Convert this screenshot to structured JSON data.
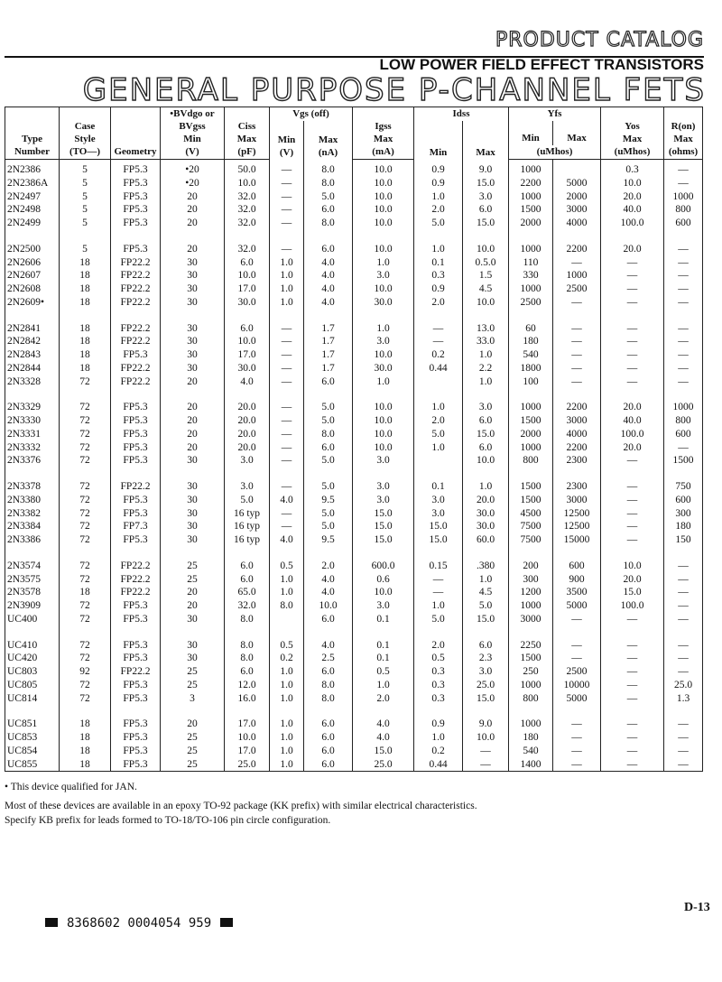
{
  "header": {
    "catalog": "PRODUCT CATALOG",
    "section": "LOW POWER FIELD EFFECT TRANSISTORS",
    "title": "GENERAL PURPOSE P-CHANNEL FETS"
  },
  "table": {
    "header": [
      [
        "Type",
        "Number"
      ],
      [
        "Case",
        "Style",
        "(TO—)"
      ],
      [
        "Geometry"
      ],
      [
        "•BVdgo or",
        "BVgss",
        "Min",
        "(V)"
      ],
      [
        "Ciss",
        "Max",
        "(pF)"
      ],
      [
        "Vgs (off)"
      ],
      [
        "Min",
        "(V)"
      ],
      [
        "Max",
        "(nA)"
      ],
      [
        "Igss",
        "Max",
        "(mA)"
      ],
      [
        "Idss"
      ],
      [
        "Min"
      ],
      [
        "Max"
      ],
      [
        "Yfs"
      ],
      [
        "Min"
      ],
      [
        "Max"
      ],
      [
        "(uMhos)"
      ],
      [
        "Yos",
        "Max",
        "(uMhos)"
      ],
      [
        "R(on)",
        "Max",
        "(ohms)"
      ]
    ],
    "groups": [
      [
        [
          "2N2386",
          "5",
          "FP5.3",
          "•20",
          "50.0",
          "—",
          "8.0",
          "10.0",
          "0.9",
          "9.0",
          "1000",
          null,
          "0.3",
          "—"
        ],
        [
          "2N2386A",
          "5",
          "FP5.3",
          "•20",
          "10.0",
          "—",
          "8.0",
          "10.0",
          "0.9",
          "15.0",
          "2200",
          "5000",
          "10.0",
          "—"
        ],
        [
          "2N2497",
          "5",
          "FP5.3",
          "20",
          "32.0",
          "—",
          "5.0",
          "10.0",
          "1.0",
          "3.0",
          "1000",
          "2000",
          "20.0",
          "1000"
        ],
        [
          "2N2498",
          "5",
          "FP5.3",
          "20",
          "32.0",
          "—",
          "6.0",
          "10.0",
          "2.0",
          "6.0",
          "1500",
          "3000",
          "40.0",
          "800"
        ],
        [
          "2N2499",
          "5",
          "FP5.3",
          "20",
          "32.0",
          "—",
          "8.0",
          "10.0",
          "5.0",
          "15.0",
          "2000",
          "4000",
          "100.0",
          "600"
        ]
      ],
      [
        [
          "2N2500",
          "5",
          "FP5.3",
          "20",
          "32.0",
          "—",
          "6.0",
          "10.0",
          "1.0",
          "10.0",
          "1000",
          "2200",
          "20.0",
          "—"
        ],
        [
          "2N2606",
          "18",
          "FP22.2",
          "30",
          "6.0",
          "1.0",
          "4.0",
          "1.0",
          "0.1",
          "0.5.0",
          "110",
          "—",
          "—",
          "—"
        ],
        [
          "2N2607",
          "18",
          "FP22.2",
          "30",
          "10.0",
          "1.0",
          "4.0",
          "3.0",
          "0.3",
          "1.5",
          "330",
          "1000",
          "—",
          "—"
        ],
        [
          "2N2608",
          "18",
          "FP22.2",
          "30",
          "17.0",
          "1.0",
          "4.0",
          "10.0",
          "0.9",
          "4.5",
          "1000",
          "2500",
          "—",
          "—"
        ],
        [
          "2N2609•",
          "18",
          "FP22.2",
          "30",
          "30.0",
          "1.0",
          "4.0",
          "30.0",
          "2.0",
          "10.0",
          "2500",
          "—",
          "—",
          "—"
        ]
      ],
      [
        [
          "2N2841",
          "18",
          "FP22.2",
          "30",
          "6.0",
          "—",
          "1.7",
          "1.0",
          "—",
          "13.0",
          "60",
          "—",
          "—",
          "—"
        ],
        [
          "2N2842",
          "18",
          "FP22.2",
          "30",
          "10.0",
          "—",
          "1.7",
          "3.0",
          "—",
          "33.0",
          "180",
          "—",
          "—",
          "—"
        ],
        [
          "2N2843",
          "18",
          "FP5.3",
          "30",
          "17.0",
          "—",
          "1.7",
          "10.0",
          "0.2",
          "1.0",
          "540",
          "—",
          "—",
          "—"
        ],
        [
          "2N2844",
          "18",
          "FP22.2",
          "30",
          "30.0",
          "—",
          "1.7",
          "30.0",
          "0.44",
          "2.2",
          "1800",
          "—",
          "—",
          "—"
        ],
        [
          "2N3328",
          "72",
          "FP22.2",
          "20",
          "4.0",
          "—",
          "6.0",
          "1.0",
          null,
          "1.0",
          "100",
          "—",
          "—",
          "—"
        ]
      ],
      [
        [
          "2N3329",
          "72",
          "FP5.3",
          "20",
          "20.0",
          "—",
          "5.0",
          "10.0",
          "1.0",
          "3.0",
          "1000",
          "2200",
          "20.0",
          "1000"
        ],
        [
          "2N3330",
          "72",
          "FP5.3",
          "20",
          "20.0",
          "—",
          "5.0",
          "10.0",
          "2.0",
          "6.0",
          "1500",
          "3000",
          "40.0",
          "800"
        ],
        [
          "2N3331",
          "72",
          "FP5.3",
          "20",
          "20.0",
          "—",
          "8.0",
          "10.0",
          "5.0",
          "15.0",
          "2000",
          "4000",
          "100.0",
          "600"
        ],
        [
          "2N3332",
          "72",
          "FP5.3",
          "20",
          "20.0",
          "—",
          "6.0",
          "10.0",
          "1.0",
          "6.0",
          "1000",
          "2200",
          "20.0",
          "—"
        ],
        [
          "2N3376",
          "72",
          "FP5.3",
          "30",
          "3.0",
          "—",
          "5.0",
          "3.0",
          null,
          "10.0",
          "800",
          "2300",
          "—",
          "1500"
        ]
      ],
      [
        [
          "2N3378",
          "72",
          "FP22.2",
          "30",
          "3.0",
          "—",
          "5.0",
          "3.0",
          "0.1",
          "1.0",
          "1500",
          "2300",
          "—",
          "750"
        ],
        [
          "2N3380",
          "72",
          "FP5.3",
          "30",
          "5.0",
          "4.0",
          "9.5",
          "3.0",
          "3.0",
          "20.0",
          "1500",
          "3000",
          "—",
          "600"
        ],
        [
          "2N3382",
          "72",
          "FP5.3",
          "30",
          "16 typ",
          "—",
          "5.0",
          "15.0",
          "3.0",
          "30.0",
          "4500",
          "12500",
          "—",
          "300"
        ],
        [
          "2N3384",
          "72",
          "FP7.3",
          "30",
          "16 typ",
          "—",
          "5.0",
          "15.0",
          "15.0",
          "30.0",
          "7500",
          "12500",
          "—",
          "180"
        ],
        [
          "2N3386",
          "72",
          "FP5.3",
          "30",
          "16 typ",
          "4.0",
          "9.5",
          "15.0",
          "15.0",
          "60.0",
          "7500",
          "15000",
          "—",
          "150"
        ]
      ],
      [
        [
          "2N3574",
          "72",
          "FP22.2",
          "25",
          "6.0",
          "0.5",
          "2.0",
          "600.0",
          "0.15",
          ".380",
          "200",
          "600",
          "10.0",
          "—"
        ],
        [
          "2N3575",
          "72",
          "FP22.2",
          "25",
          "6.0",
          "1.0",
          "4.0",
          "0.6",
          "—",
          "1.0",
          "300",
          "900",
          "20.0",
          "—"
        ],
        [
          "2N3578",
          "18",
          "FP22.2",
          "20",
          "65.0",
          "1.0",
          "4.0",
          "10.0",
          "—",
          "4.5",
          "1200",
          "3500",
          "15.0",
          "—"
        ],
        [
          "2N3909",
          "72",
          "FP5.3",
          "20",
          "32.0",
          "8.0",
          "10.0",
          "3.0",
          "1.0",
          "5.0",
          "1000",
          "5000",
          "100.0",
          "—"
        ],
        [
          "UC400",
          "72",
          "FP5.3",
          "30",
          "8.0",
          null,
          "6.0",
          "0.1",
          "5.0",
          "15.0",
          "3000",
          "—",
          "—",
          "—"
        ]
      ],
      [
        [
          "UC410",
          "72",
          "FP5.3",
          "30",
          "8.0",
          "0.5",
          "4.0",
          "0.1",
          "2.0",
          "6.0",
          "2250",
          "—",
          "—",
          "—"
        ],
        [
          "UC420",
          "72",
          "FP5.3",
          "30",
          "8.0",
          "0.2",
          "2.5",
          "0.1",
          "0.5",
          "2.3",
          "1500",
          "—",
          "—",
          "—"
        ],
        [
          "UC803",
          "92",
          "FP22.2",
          "25",
          "6.0",
          "1.0",
          "6.0",
          "0.5",
          "0.3",
          "3.0",
          "250",
          "2500",
          "—",
          "—"
        ],
        [
          "UC805",
          "72",
          "FP5.3",
          "25",
          "12.0",
          "1.0",
          "8.0",
          "1.0",
          "0.3",
          "25.0",
          "1000",
          "10000",
          "—",
          "25.0"
        ],
        [
          "UC814",
          "72",
          "FP5.3",
          "3",
          "16.0",
          "1.0",
          "8.0",
          "2.0",
          "0.3",
          "15.0",
          "800",
          "5000",
          "—",
          "1.3"
        ]
      ],
      [
        [
          "UC851",
          "18",
          "FP5.3",
          "20",
          "17.0",
          "1.0",
          "6.0",
          "4.0",
          "0.9",
          "9.0",
          "1000",
          "—",
          "—",
          "—"
        ],
        [
          "UC853",
          "18",
          "FP5.3",
          "25",
          "10.0",
          "1.0",
          "6.0",
          "4.0",
          "1.0",
          "10.0",
          "180",
          "—",
          "—",
          "—"
        ],
        [
          "UC854",
          "18",
          "FP5.3",
          "25",
          "17.0",
          "1.0",
          "6.0",
          "15.0",
          "0.2",
          "—",
          "540",
          "—",
          "—",
          "—"
        ],
        [
          "UC855",
          "18",
          "FP5.3",
          "25",
          "25.0",
          "1.0",
          "6.0",
          "25.0",
          "0.44",
          "—",
          "1400",
          "—",
          "—",
          "—"
        ]
      ]
    ]
  },
  "notes": [
    "• This device qualified for JAN.",
    "Most of these devices are available in an epoxy TO-92 package (KK prefix) with similar electrical characteristics.",
    "Specify KB prefix for leads formed to TO-18/TO-106 pin circle configuration."
  ],
  "footer": {
    "code": "8368602 0004054 959",
    "page": "D-13"
  }
}
